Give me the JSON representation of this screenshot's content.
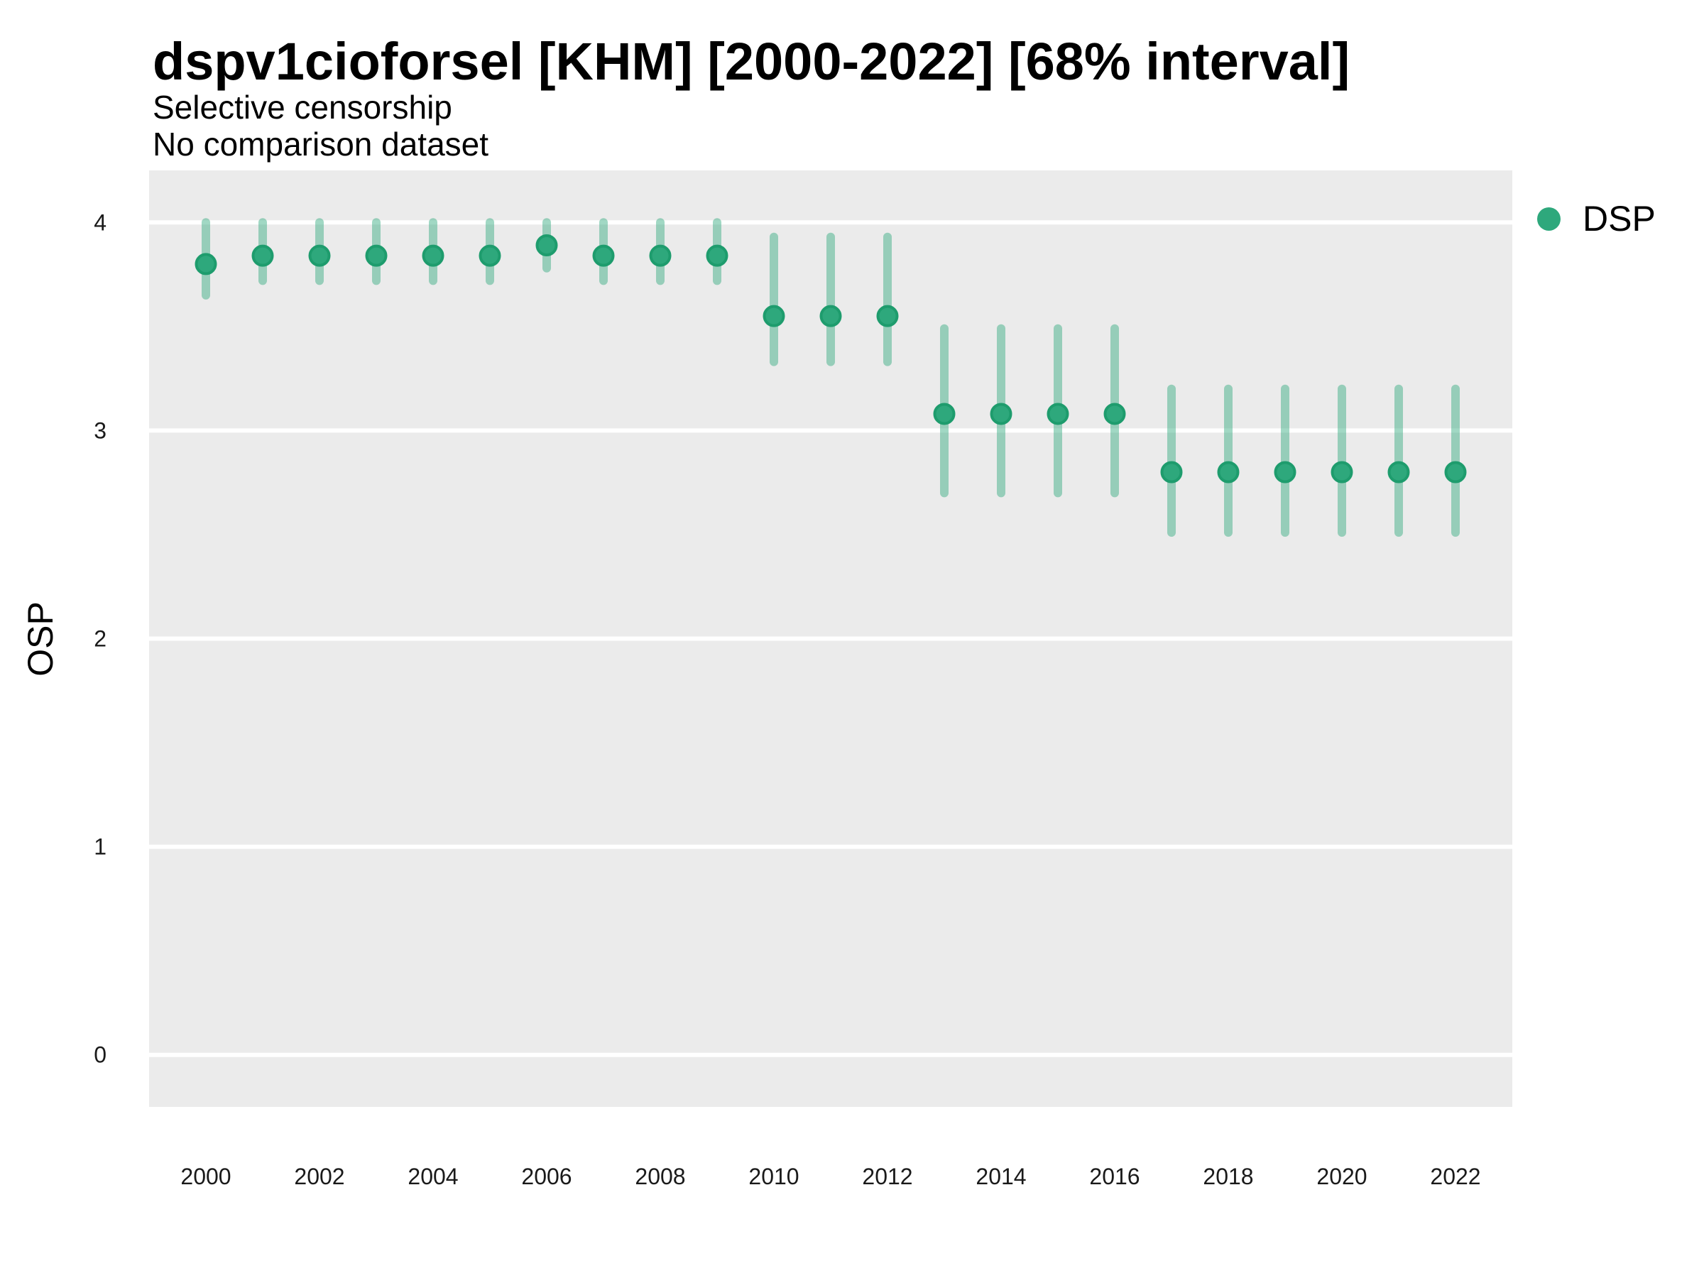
{
  "chart_data": {
    "type": "pointrange",
    "title": "dspv1cioforsel [KHM] [2000-2022] [68% interval]",
    "subtitle": "Selective censorship",
    "note": "No comparison dataset",
    "interval_label": "68% interval",
    "country_code": "KHM",
    "xlabel": "",
    "ylabel": "OSP",
    "x": [
      2000,
      2001,
      2002,
      2003,
      2004,
      2005,
      2006,
      2007,
      2008,
      2009,
      2010,
      2011,
      2012,
      2013,
      2014,
      2015,
      2016,
      2017,
      2018,
      2019,
      2020,
      2021,
      2022
    ],
    "series": [
      {
        "name": "DSP",
        "values": [
          3.8,
          3.84,
          3.84,
          3.84,
          3.84,
          3.84,
          3.89,
          3.84,
          3.84,
          3.84,
          3.55,
          3.55,
          3.55,
          3.08,
          3.08,
          3.08,
          3.08,
          2.8,
          2.8,
          2.8,
          2.8,
          2.8,
          2.8
        ],
        "lower": [
          3.65,
          3.72,
          3.72,
          3.72,
          3.72,
          3.72,
          3.78,
          3.72,
          3.72,
          3.72,
          3.33,
          3.33,
          3.33,
          2.7,
          2.7,
          2.7,
          2.7,
          2.51,
          2.51,
          2.51,
          2.51,
          2.51,
          2.51
        ],
        "upper": [
          4.0,
          4.0,
          4.0,
          4.0,
          4.0,
          4.0,
          4.0,
          4.0,
          4.0,
          4.0,
          3.93,
          3.93,
          3.93,
          3.49,
          3.49,
          3.49,
          3.49,
          3.2,
          3.2,
          3.2,
          3.2,
          3.2,
          3.2
        ]
      }
    ],
    "xlim": [
      1999,
      2023
    ],
    "ylim": [
      -0.25,
      4.25
    ],
    "x_ticks": [
      2000,
      2002,
      2004,
      2006,
      2008,
      2010,
      2012,
      2014,
      2016,
      2018,
      2020,
      2022
    ],
    "y_ticks": [
      0,
      1,
      2,
      3,
      4
    ],
    "grid": "major-y",
    "legend_position": "top-right",
    "colors": {
      "point": "#2EA87C",
      "point_stroke": "#1E9C6D",
      "interval": "rgba(46,168,124,0.45)",
      "panel": "#EBEBEB",
      "gridline": "#FFFFFF",
      "text": "#000000"
    }
  }
}
